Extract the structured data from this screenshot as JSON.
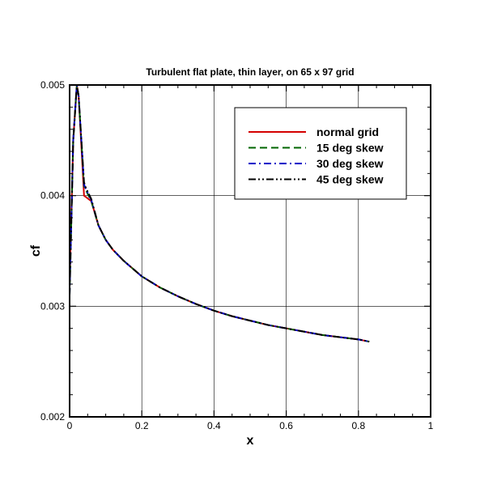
{
  "chart_data": {
    "type": "line",
    "title": "Turbulent flat plate, thin layer, on 65 x 97 grid",
    "xlabel": "x",
    "ylabel": "cf",
    "xlim": [
      0,
      1
    ],
    "ylim": [
      0.002,
      0.005
    ],
    "xticks": [
      0,
      0.2,
      0.4,
      0.6,
      0.8,
      1
    ],
    "xtick_labels": [
      "0",
      "0.2",
      "0.4",
      "0.6",
      "0.8",
      "1"
    ],
    "yticks": [
      0.002,
      0.003,
      0.004,
      0.005
    ],
    "ytick_labels": [
      "0.002",
      "0.003",
      "0.004",
      "0.005"
    ],
    "grid": true,
    "legend_position": "top-right",
    "series": [
      {
        "name": "normal grid",
        "color": "#d40000",
        "dash": "solid",
        "x": [
          0.0,
          0.01,
          0.02,
          0.025,
          0.04,
          0.06,
          0.08,
          0.1,
          0.12,
          0.15,
          0.2,
          0.25,
          0.3,
          0.35,
          0.4,
          0.45,
          0.5,
          0.55,
          0.6,
          0.65,
          0.7,
          0.75,
          0.8,
          0.83
        ],
        "y": [
          0.0032,
          0.0045,
          0.005,
          0.0049,
          0.004,
          0.00395,
          0.00373,
          0.0036,
          0.00351,
          0.00341,
          0.00327,
          0.00317,
          0.00309,
          0.00302,
          0.00296,
          0.00291,
          0.00287,
          0.00283,
          0.0028,
          0.00277,
          0.00274,
          0.00272,
          0.0027,
          0.00268
        ]
      },
      {
        "name": "15 deg skew",
        "color": "#006400",
        "dash": "dashed",
        "x": [
          0.0,
          0.01,
          0.02,
          0.025,
          0.04,
          0.045,
          0.06,
          0.08,
          0.1,
          0.12,
          0.15,
          0.2,
          0.25,
          0.3,
          0.35,
          0.4,
          0.45,
          0.5,
          0.55,
          0.6,
          0.65,
          0.7,
          0.75,
          0.8,
          0.83
        ],
        "y": [
          0.0031,
          0.0045,
          0.005,
          0.0049,
          0.00408,
          0.00405,
          0.00395,
          0.00373,
          0.0036,
          0.00351,
          0.00341,
          0.00327,
          0.00317,
          0.00309,
          0.00302,
          0.00296,
          0.00291,
          0.00287,
          0.00283,
          0.0028,
          0.00277,
          0.00274,
          0.00272,
          0.0027,
          0.00268
        ]
      },
      {
        "name": "30 deg skew",
        "color": "#0000c8",
        "dash": "dashdot",
        "x": [
          0.0,
          0.01,
          0.02,
          0.025,
          0.04,
          0.045,
          0.06,
          0.08,
          0.1,
          0.12,
          0.15,
          0.2,
          0.25,
          0.3,
          0.35,
          0.4,
          0.45,
          0.5,
          0.55,
          0.6,
          0.65,
          0.7,
          0.75,
          0.8,
          0.83
        ],
        "y": [
          0.0031,
          0.0045,
          0.005,
          0.0049,
          0.0041,
          0.00406,
          0.00396,
          0.00373,
          0.0036,
          0.00351,
          0.00341,
          0.00327,
          0.00317,
          0.00309,
          0.00302,
          0.00296,
          0.00291,
          0.00287,
          0.00283,
          0.0028,
          0.00277,
          0.00274,
          0.00272,
          0.0027,
          0.00268
        ]
      },
      {
        "name": "45 deg skew",
        "color": "#000000",
        "dash": "dashdotdot",
        "x": [
          0.0,
          0.01,
          0.02,
          0.025,
          0.04,
          0.045,
          0.06,
          0.08,
          0.1,
          0.12,
          0.15,
          0.2,
          0.25,
          0.3,
          0.35,
          0.4,
          0.45,
          0.5,
          0.55,
          0.6,
          0.65,
          0.7,
          0.75,
          0.8,
          0.83
        ],
        "y": [
          0.0031,
          0.0045,
          0.005,
          0.0049,
          0.00412,
          0.00407,
          0.00397,
          0.00373,
          0.0036,
          0.00351,
          0.00341,
          0.00327,
          0.00317,
          0.00309,
          0.00302,
          0.00296,
          0.00291,
          0.00287,
          0.00283,
          0.0028,
          0.00277,
          0.00274,
          0.00272,
          0.0027,
          0.00268
        ]
      }
    ]
  }
}
